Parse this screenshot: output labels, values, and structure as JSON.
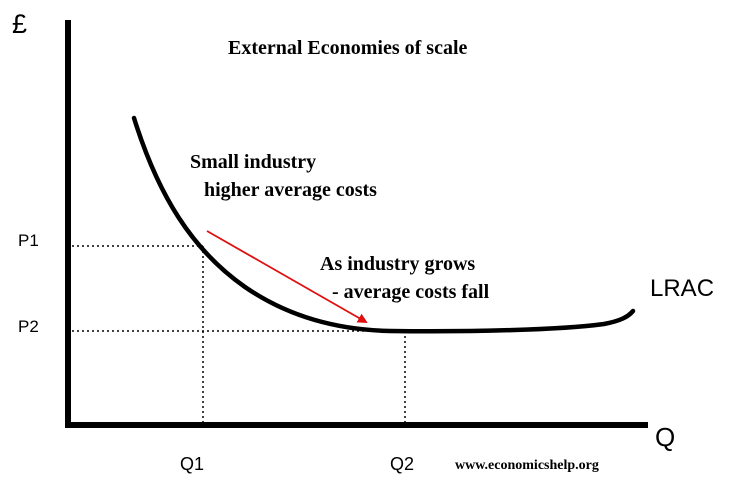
{
  "title": "External Economies of scale",
  "axes": {
    "y_label": "£",
    "x_label": "Q"
  },
  "curve_label": "LRAC",
  "price_labels": [
    "P1",
    "P2"
  ],
  "quantity_labels": [
    "Q1",
    "Q2"
  ],
  "annotations": {
    "small_industry_line1": "Small industry",
    "small_industry_line2": "higher average costs",
    "grows_line1": "As industry grows",
    "grows_line2": "- average costs fall"
  },
  "source": "www.economicshelp.org",
  "colors": {
    "axis": "#000000",
    "curve": "#000000",
    "arrow": "#e01010",
    "guide": "#000000"
  }
}
